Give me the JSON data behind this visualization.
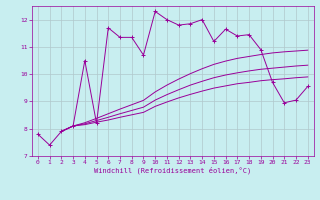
{
  "xlabel": "Windchill (Refroidissement éolien,°C)",
  "bg_color": "#c8eef0",
  "line_color": "#990099",
  "grid_color": "#b0c8cc",
  "xlim": [
    -0.5,
    23.5
  ],
  "ylim": [
    7,
    12.5
  ],
  "yticks": [
    7,
    8,
    9,
    10,
    11,
    12
  ],
  "xticks": [
    0,
    1,
    2,
    3,
    4,
    5,
    6,
    7,
    8,
    9,
    10,
    11,
    12,
    13,
    14,
    15,
    16,
    17,
    18,
    19,
    20,
    21,
    22,
    23
  ],
  "main": [
    7.8,
    7.4,
    7.9,
    8.1,
    10.5,
    8.2,
    11.7,
    11.35,
    11.35,
    10.7,
    12.3,
    12.0,
    11.8,
    11.85,
    12.0,
    11.2,
    11.65,
    11.4,
    11.45,
    10.9,
    9.7,
    8.95,
    9.05,
    9.55
  ],
  "trend1_x": [
    2,
    3,
    4,
    5,
    6,
    7,
    8,
    9,
    10,
    11,
    12,
    13,
    14,
    15,
    16,
    17,
    18,
    19,
    20,
    21,
    22,
    23
  ],
  "trend1_y": [
    7.9,
    8.1,
    8.22,
    8.38,
    8.55,
    8.72,
    8.88,
    9.04,
    9.35,
    9.6,
    9.82,
    10.02,
    10.2,
    10.36,
    10.48,
    10.58,
    10.65,
    10.72,
    10.78,
    10.82,
    10.85,
    10.88
  ],
  "trend2_x": [
    2,
    3,
    4,
    5,
    6,
    7,
    8,
    9,
    10,
    11,
    12,
    13,
    14,
    15,
    16,
    17,
    18,
    19,
    20,
    21,
    22,
    23
  ],
  "trend2_y": [
    7.9,
    8.1,
    8.18,
    8.3,
    8.42,
    8.55,
    8.67,
    8.79,
    9.05,
    9.25,
    9.43,
    9.6,
    9.74,
    9.87,
    9.97,
    10.05,
    10.12,
    10.18,
    10.22,
    10.26,
    10.3,
    10.33
  ],
  "trend3_x": [
    2,
    3,
    4,
    5,
    6,
    7,
    8,
    9,
    10,
    11,
    12,
    13,
    14,
    15,
    16,
    17,
    18,
    19,
    20,
    21,
    22,
    23
  ],
  "trend3_y": [
    7.9,
    8.1,
    8.15,
    8.24,
    8.32,
    8.42,
    8.51,
    8.6,
    8.82,
    8.98,
    9.13,
    9.26,
    9.38,
    9.49,
    9.57,
    9.65,
    9.7,
    9.76,
    9.8,
    9.83,
    9.87,
    9.9
  ]
}
